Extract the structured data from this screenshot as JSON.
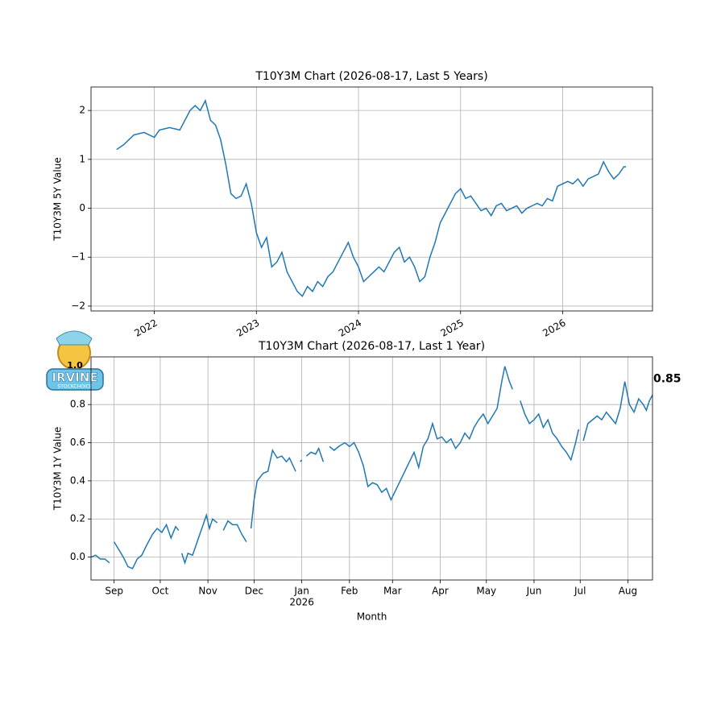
{
  "chart_data": [
    {
      "type": "line",
      "title": "T10Y3M Chart (2026-08-17, Last 5 Years)",
      "ylabel": "T10Y3M 5Y Value",
      "color": "#1f77b4",
      "grid": true,
      "xlim": [
        2021.38,
        2026.88
      ],
      "ylim": [
        -2.1,
        2.48
      ],
      "xticks": [
        2022,
        2023,
        2024,
        2025,
        2026
      ],
      "yticks": [
        {
          "value": -2,
          "label": "−2"
        },
        {
          "value": -1,
          "label": "−1"
        },
        0,
        1,
        2
      ],
      "x": [
        2021.63,
        2021.7,
        2021.8,
        2021.9,
        2022.0,
        2022.05,
        2022.15,
        2022.25,
        2022.3,
        2022.35,
        2022.4,
        2022.45,
        2022.5,
        2022.55,
        2022.6,
        2022.65,
        2022.7,
        2022.75,
        2022.8,
        2022.85,
        2022.9,
        2022.95,
        2023.0,
        2023.05,
        2023.1,
        2023.15,
        2023.2,
        2023.25,
        2023.3,
        2023.35,
        2023.4,
        2023.45,
        2023.5,
        2023.55,
        2023.6,
        2023.65,
        2023.7,
        2023.75,
        2023.8,
        2023.85,
        2023.9,
        2023.95,
        2024.0,
        2024.05,
        2024.1,
        2024.15,
        2024.2,
        2024.25,
        2024.3,
        2024.35,
        2024.4,
        2024.45,
        2024.5,
        2024.55,
        2024.6,
        2024.65,
        2024.7,
        2024.75,
        2024.8,
        2024.85,
        2024.9,
        2024.95,
        2025.0,
        2025.05,
        2025.1,
        2025.15,
        2025.2,
        2025.25,
        2025.3,
        2025.35,
        2025.4,
        2025.45,
        2025.5,
        2025.55,
        2025.6,
        2025.65,
        2025.7,
        2025.75,
        2025.8,
        2025.85,
        2025.9,
        2025.95,
        2026.0,
        2026.05,
        2026.1,
        2026.15,
        2026.2,
        2026.25,
        2026.3,
        2026.35,
        2026.4,
        2026.45,
        2026.5,
        2026.55,
        2026.6,
        2026.62
      ],
      "values": [
        1.2,
        1.3,
        1.5,
        1.55,
        1.45,
        1.6,
        1.65,
        1.6,
        1.8,
        2.0,
        2.1,
        2.0,
        2.2,
        1.8,
        1.7,
        1.4,
        0.9,
        0.3,
        0.2,
        0.25,
        0.5,
        0.1,
        -0.5,
        -0.8,
        -0.6,
        -1.2,
        -1.1,
        -0.9,
        -1.3,
        -1.5,
        -1.7,
        -1.8,
        -1.6,
        -1.7,
        -1.5,
        -1.6,
        -1.4,
        -1.3,
        -1.1,
        -0.9,
        -0.7,
        -1.0,
        -1.2,
        -1.5,
        -1.4,
        -1.3,
        -1.2,
        -1.3,
        -1.1,
        -0.9,
        -0.8,
        -1.1,
        -1.0,
        -1.2,
        -1.5,
        -1.4,
        -1.0,
        -0.7,
        -0.3,
        -0.1,
        0.1,
        0.3,
        0.4,
        0.2,
        0.25,
        0.1,
        -0.05,
        0.0,
        -0.15,
        0.05,
        0.1,
        -0.05,
        0.0,
        0.05,
        -0.1,
        0.0,
        0.05,
        0.1,
        0.05,
        0.2,
        0.15,
        0.45,
        0.5,
        0.55,
        0.5,
        0.6,
        0.45,
        0.6,
        0.65,
        0.7,
        0.95,
        0.75,
        0.6,
        0.7,
        0.85,
        0.85
      ]
    },
    {
      "type": "line",
      "title": "T10Y3M Chart (2026-08-17, Last 1 Year)",
      "ylabel": "T10Y3M 1Y Value",
      "xlabel": "Month",
      "color": "#1f77b4",
      "grid": true,
      "xlim": [
        0,
        365
      ],
      "ylim": [
        -0.12,
        1.05
      ],
      "xticks": [
        {
          "value": 15,
          "label": "Sep"
        },
        {
          "value": 45,
          "label": "Oct"
        },
        {
          "value": 76,
          "label": "Nov"
        },
        {
          "value": 106,
          "label": "Dec"
        },
        {
          "value": 137,
          "label": "Jan"
        },
        {
          "value": 168,
          "label": "Feb"
        },
        {
          "value": 196,
          "label": "Mar"
        },
        {
          "value": 227,
          "label": "Apr"
        },
        {
          "value": 257,
          "label": "May"
        },
        {
          "value": 288,
          "label": "Jun"
        },
        {
          "value": 318,
          "label": "Jul"
        },
        {
          "value": 349,
          "label": "Aug"
        }
      ],
      "year_marker": {
        "value": 137,
        "label": "2026"
      },
      "yticks": [
        {
          "value": 0,
          "label": "0.0"
        },
        0.2,
        0.4,
        0.6,
        0.8
      ],
      "end_label": "0.85",
      "x": [
        0,
        3,
        6,
        9,
        12,
        14,
        15,
        18,
        21,
        24,
        27,
        30,
        33,
        36,
        40,
        43,
        46,
        49,
        52,
        55,
        57,
        58,
        59,
        61,
        63,
        66,
        69,
        72,
        75,
        77,
        79,
        82,
        84,
        86,
        89,
        92,
        95,
        98,
        101,
        102,
        104,
        106,
        108,
        112,
        115,
        118,
        121,
        124,
        127,
        129,
        133,
        134,
        136,
        137,
        138,
        140,
        143,
        146,
        148,
        151,
        152,
        153,
        154,
        155,
        158,
        161,
        165,
        168,
        171,
        174,
        177,
        180,
        183,
        186,
        189,
        192,
        195,
        198,
        201,
        204,
        207,
        210,
        213,
        216,
        219,
        222,
        225,
        228,
        231,
        234,
        237,
        240,
        243,
        246,
        249,
        252,
        255,
        258,
        261,
        264,
        267,
        269,
        272,
        274,
        276,
        279,
        282,
        285,
        288,
        291,
        294,
        297,
        300,
        303,
        306,
        309,
        312,
        315,
        317,
        318,
        320,
        323,
        326,
        329,
        332,
        335,
        338,
        341,
        344,
        347,
        350,
        353,
        356,
        359,
        361,
        363,
        365
      ],
      "values": [
        0.0,
        0.01,
        -0.01,
        -0.01,
        -0.03,
        null,
        0.08,
        0.04,
        0.0,
        -0.05,
        -0.06,
        -0.01,
        0.01,
        0.06,
        0.12,
        0.15,
        0.13,
        0.17,
        0.1,
        0.16,
        0.14,
        null,
        0.02,
        -0.03,
        0.02,
        0.01,
        0.08,
        0.15,
        0.22,
        0.15,
        0.2,
        0.18,
        null,
        0.14,
        0.19,
        0.17,
        0.17,
        0.12,
        0.08,
        null,
        0.15,
        0.3,
        0.4,
        0.44,
        0.45,
        0.56,
        0.52,
        0.53,
        0.5,
        0.52,
        0.45,
        null,
        0.5,
        0.51,
        null,
        0.53,
        0.55,
        0.54,
        0.57,
        0.5,
        null,
        0.57,
        null,
        0.58,
        0.56,
        0.58,
        0.6,
        0.58,
        0.6,
        0.55,
        0.48,
        0.37,
        0.39,
        0.38,
        0.34,
        0.36,
        0.3,
        0.35,
        0.4,
        0.45,
        0.5,
        0.55,
        0.47,
        0.58,
        0.62,
        0.7,
        0.62,
        0.63,
        0.6,
        0.62,
        0.57,
        0.6,
        0.65,
        0.62,
        0.68,
        0.72,
        0.75,
        0.7,
        0.74,
        0.78,
        0.92,
        1.0,
        0.92,
        0.88,
        null,
        0.82,
        0.75,
        0.7,
        0.72,
        0.75,
        0.68,
        0.72,
        0.65,
        0.62,
        0.58,
        0.55,
        0.51,
        0.6,
        0.67,
        null,
        0.61,
        0.7,
        0.72,
        0.74,
        0.72,
        0.76,
        0.73,
        0.7,
        0.78,
        0.92,
        0.8,
        0.76,
        0.83,
        0.8,
        0.77,
        0.82,
        0.85
      ]
    }
  ],
  "logo": {
    "version": "1.0",
    "name": "IRVINE",
    "tagline": "STOCKCHOICE"
  }
}
